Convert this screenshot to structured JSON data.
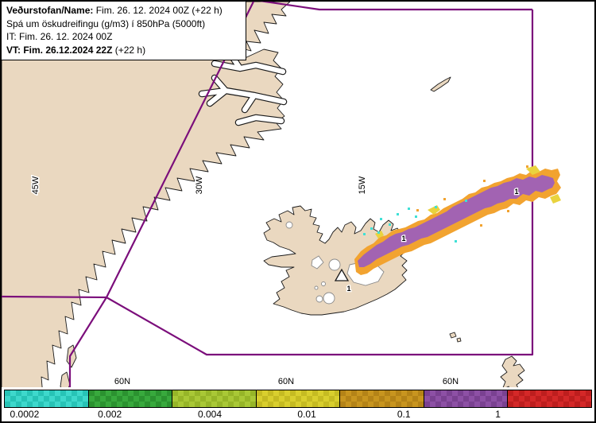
{
  "info_box": {
    "line1_label": "Veðurstofan/Name:",
    "line1_value": "Fim. 26. 12. 2024 00Z (+22 h)",
    "line2": "Spá um öskudreifingu (g/m3) í 850hPa (5000ft)",
    "line3": "IT: Fim. 26. 12. 2024 00Z",
    "line4_bold": "VT: Fim. 26.12.2024 22Z",
    "line4_tail": "(+22 h)"
  },
  "map": {
    "meridian_labels": [
      "45W",
      "30W",
      "15W"
    ],
    "parallel_labels": [
      "60N",
      "60N",
      "60N"
    ],
    "contour_labels": [
      "1",
      "1",
      "1"
    ]
  },
  "colors": {
    "land": "#ead8c0",
    "sea": "#ffffff",
    "coast": "#1a1a1a",
    "boundary": "#7b0e7b",
    "glacier": "#ffffff",
    "plume_purple": "#a263b2",
    "plume_orange": "#f2a330",
    "plume_yellow": "#e9d33e",
    "plume_cyan": "#3fe0d6"
  },
  "colorbar": {
    "segments": [
      {
        "color": "#3ed8cc",
        "alt": "#27c3b6"
      },
      {
        "color": "#38a93d",
        "alt": "#2b9230"
      },
      {
        "color": "#a9c836",
        "alt": "#96b528"
      },
      {
        "color": "#d9cf2e",
        "alt": "#c5bb22"
      },
      {
        "color": "#c8951f",
        "alt": "#b48317"
      },
      {
        "color": "#8d50a5",
        "alt": "#7a4191"
      },
      {
        "color": "#d42828",
        "alt": "#bd1e1e"
      }
    ],
    "labels": [
      "0.0002",
      "0.002",
      "0.004",
      "0.01",
      "0.1",
      "1"
    ]
  }
}
